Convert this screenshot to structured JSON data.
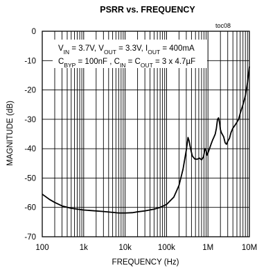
{
  "chart_data": {
    "type": "line",
    "title": "PSRR vs. FREQUENCY",
    "figure_tag": "toc08",
    "xlabel": "FREQUENCY (Hz)",
    "ylabel": "MAGNITUDE (dB)",
    "x_scale": "log",
    "xlim": [
      100,
      10000000
    ],
    "ylim": [
      -70,
      0
    ],
    "x_tick_values": [
      100,
      1000,
      10000,
      100000,
      1000000,
      10000000
    ],
    "x_tick_labels": [
      "100",
      "1k",
      "10k",
      "100k",
      "1M",
      "10M"
    ],
    "y_ticks": [
      0,
      -10,
      -20,
      -30,
      -40,
      -50,
      -60,
      -70
    ],
    "grid": true,
    "annotation": {
      "line1": [
        {
          "t": "V",
          "sub": false
        },
        {
          "t": "IN",
          "sub": true
        },
        {
          "t": " = 3.7V, V",
          "sub": false
        },
        {
          "t": "OUT",
          "sub": true
        },
        {
          "t": " = 3.3V, I",
          "sub": false
        },
        {
          "t": "OUT",
          "sub": true
        },
        {
          "t": " =  400mA",
          "sub": false
        }
      ],
      "line2": [
        {
          "t": "C",
          "sub": false
        },
        {
          "t": "BYP",
          "sub": true
        },
        {
          "t": " = 100nF , C",
          "sub": false
        },
        {
          "t": "IN",
          "sub": true
        },
        {
          "t": " = C",
          "sub": false
        },
        {
          "t": "OUT",
          "sub": true
        },
        {
          "t": " = 3 x 4.7µF",
          "sub": false
        }
      ]
    },
    "series": [
      {
        "x": [
          100,
          150,
          200,
          300,
          500,
          1000,
          2000,
          3000,
          5000,
          7000,
          10000,
          15000,
          20000,
          30000,
          50000,
          70000,
          100000,
          150000,
          200000,
          250000,
          300000,
          330000,
          350000,
          380000,
          420000,
          480000,
          550000,
          620000,
          700000,
          780000,
          850000,
          900000,
          950000,
          1000000,
          1100000,
          1200000,
          1300000,
          1400000,
          1500000,
          1600000,
          1700000,
          1800000,
          1900000,
          2000000,
          2100000,
          2200000,
          2400000,
          2600000,
          2800000,
          3000000,
          3300000,
          3600000,
          4000000,
          4500000,
          5000000,
          5500000,
          6000000,
          7000000,
          8000000,
          9000000,
          10000000
        ],
        "y": [
          -55.5,
          -57.3,
          -58.3,
          -59.5,
          -60.3,
          -60.9,
          -61.2,
          -61.4,
          -61.7,
          -61.9,
          -61.9,
          -61.8,
          -61.5,
          -61.2,
          -60.6,
          -60.0,
          -59.0,
          -56.5,
          -52.5,
          -47.0,
          -40.5,
          -36.2,
          -37.3,
          -40.0,
          -42.5,
          -43.5,
          -43.6,
          -43.2,
          -43.8,
          -42.8,
          -40.0,
          -40.5,
          -42.2,
          -41.5,
          -39.8,
          -38.3,
          -37.0,
          -36.0,
          -35.0,
          -33.0,
          -30.0,
          -29.5,
          -31.0,
          -33.5,
          -34.5,
          -35.0,
          -36.0,
          -38.0,
          -38.5,
          -37.5,
          -36.5,
          -34.5,
          -33.0,
          -32.0,
          -31.0,
          -30.0,
          -28.0,
          -25.0,
          -22.0,
          -17.5,
          -12.0
        ]
      }
    ]
  }
}
